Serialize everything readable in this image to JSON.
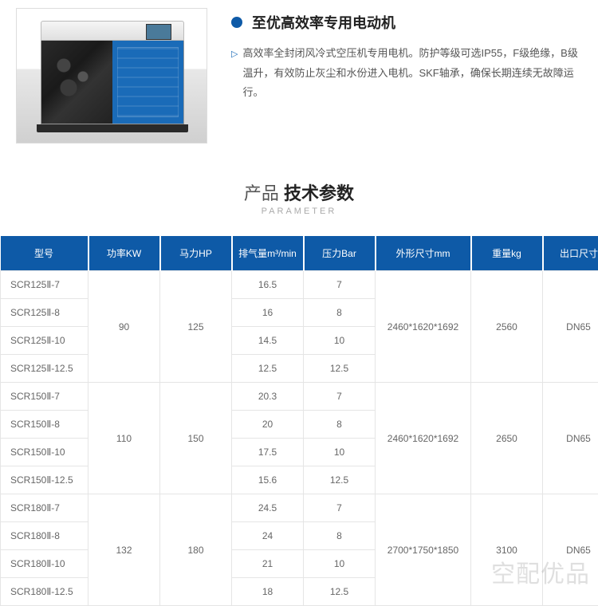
{
  "feature": {
    "title": "至优高效率专用电动机",
    "description": "高效率全封闭风冷式空压机专用电机。防护等级可选IP55，F级绝缘，B级温升，有效防止灰尘和水份进入电机。SKF轴承，确保长期连续无故障运行。"
  },
  "section_header": {
    "cn_prefix": "产品 ",
    "cn_bold": "技术参数",
    "en": "PARAMETER"
  },
  "table": {
    "headers": [
      "型号",
      "功率KW",
      "马力HP",
      "排气量m³/min",
      "压力Bar",
      "外形尺寸mm",
      "重量kg",
      "出口尺寸"
    ],
    "groups": [
      {
        "kw": "90",
        "hp": "125",
        "dim": "2460*1620*1692",
        "weight": "2560",
        "outlet": "DN65",
        "rows": [
          {
            "model": "SCR125Ⅱ-7",
            "flow": "16.5",
            "pressure": "7"
          },
          {
            "model": "SCR125Ⅱ-8",
            "flow": "16",
            "pressure": "8"
          },
          {
            "model": "SCR125Ⅱ-10",
            "flow": "14.5",
            "pressure": "10"
          },
          {
            "model": "SCR125Ⅱ-12.5",
            "flow": "12.5",
            "pressure": "12.5"
          }
        ]
      },
      {
        "kw": "110",
        "hp": "150",
        "dim": "2460*1620*1692",
        "weight": "2650",
        "outlet": "DN65",
        "rows": [
          {
            "model": "SCR150Ⅱ-7",
            "flow": "20.3",
            "pressure": "7"
          },
          {
            "model": "SCR150Ⅱ-8",
            "flow": "20",
            "pressure": "8"
          },
          {
            "model": "SCR150Ⅱ-10",
            "flow": "17.5",
            "pressure": "10"
          },
          {
            "model": "SCR150Ⅱ-12.5",
            "flow": "15.6",
            "pressure": "12.5"
          }
        ]
      },
      {
        "kw": "132",
        "hp": "180",
        "dim": "2700*1750*1850",
        "weight": "3100",
        "outlet": "DN65",
        "rows": [
          {
            "model": "SCR180Ⅱ-7",
            "flow": "24.5",
            "pressure": "7"
          },
          {
            "model": "SCR180Ⅱ-8",
            "flow": "24",
            "pressure": "8"
          },
          {
            "model": "SCR180Ⅱ-10",
            "flow": "21",
            "pressure": "10"
          },
          {
            "model": "SCR180Ⅱ-12.5",
            "flow": "18",
            "pressure": "12.5"
          }
        ]
      }
    ]
  },
  "watermark": "空配优品",
  "colors": {
    "brand_blue": "#0e5aa7",
    "link_blue": "#1a6bb8",
    "border": "#e5e5e5",
    "text_muted": "#666"
  }
}
